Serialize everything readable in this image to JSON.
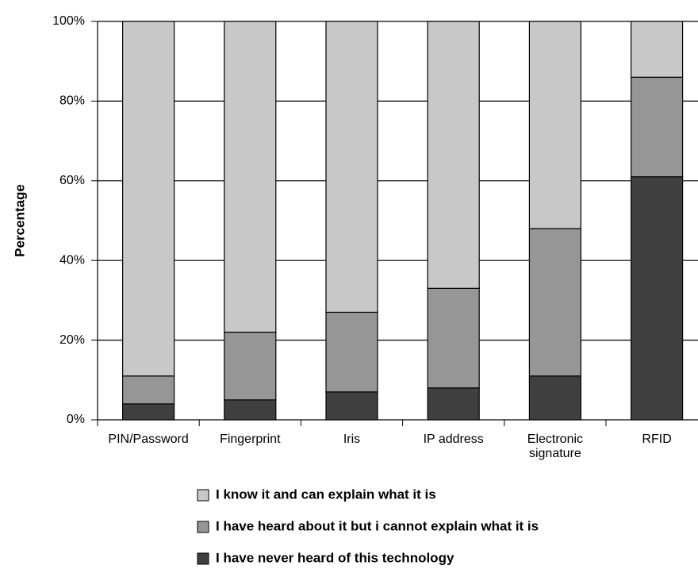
{
  "chart_data": {
    "type": "stacked_bar",
    "y_label": "Percentage",
    "categories": [
      "PIN/Password",
      "Fingerprint",
      "Iris",
      "IP address",
      "Electronic signature",
      "RFID"
    ],
    "series": [
      {
        "name": "I have never heard of this technology",
        "color": "#404040",
        "values": [
          4,
          5,
          7,
          8,
          11,
          61
        ]
      },
      {
        "name": "I have heard about it but i cannot explain what it is",
        "color": "#969696",
        "values": [
          7,
          17,
          20,
          25,
          37,
          25
        ]
      },
      {
        "name": "I know it and can explain what it is",
        "color": "#c8c8c8",
        "values": [
          89,
          78,
          73,
          67,
          52,
          14
        ]
      }
    ],
    "ylim": [
      0,
      100
    ],
    "yticks": [
      {
        "value": 0,
        "label": "0%"
      },
      {
        "value": 20,
        "label": "20%"
      },
      {
        "value": 40,
        "label": "40%"
      },
      {
        "value": 60,
        "label": "60%"
      },
      {
        "value": 80,
        "label": "80%"
      },
      {
        "value": 100,
        "label": "100%"
      }
    ],
    "grid": true
  }
}
